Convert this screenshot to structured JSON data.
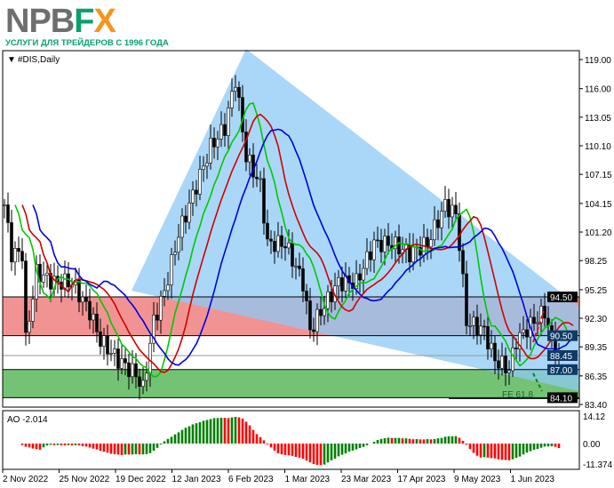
{
  "logo": {
    "text_gray": "NPB",
    "text_green": "F",
    "text_orange": "X",
    "tagline": "УСЛУГИ ДЛЯ ТРЕЙДЕРОВ С 1996 ГОДА"
  },
  "chart_data": [
    {
      "type": "candlestick",
      "title": "#DIS,Daily",
      "ylim": [
        83.4,
        119.0
      ],
      "y_ticks": [
        "119.00",
        "116.00",
        "113.05",
        "110.10",
        "107.15",
        "104.15",
        "101.20",
        "98.25",
        "95.25",
        "92.30",
        "89.35",
        "86.35",
        "83.40"
      ],
      "x_ticks": [
        "2 Nov 2022",
        "25 Nov 2022",
        "19 Dec 2022",
        "12 Jan 2023",
        "6 Feb 2023",
        "1 Mar 2023",
        "23 Mar 2023",
        "17 Apr 2023",
        "9 May 2023",
        "1 Jun 2023"
      ],
      "close_path": [
        [
          0,
          104
        ],
        [
          2,
          99
        ],
        [
          5,
          99
        ],
        [
          6,
          90
        ],
        [
          9,
          97
        ],
        [
          14,
          96
        ],
        [
          19,
          96
        ],
        [
          24,
          93
        ],
        [
          27,
          90
        ],
        [
          32,
          88
        ],
        [
          37,
          86.5
        ],
        [
          39,
          85
        ],
        [
          42,
          92
        ],
        [
          45,
          95
        ],
        [
          49,
          101
        ],
        [
          53,
          105
        ],
        [
          58,
          110
        ],
        [
          62,
          112
        ],
        [
          65,
          117
        ],
        [
          68,
          109
        ],
        [
          72,
          106
        ],
        [
          74,
          100
        ],
        [
          79,
          100
        ],
        [
          84,
          96
        ],
        [
          86,
          91
        ],
        [
          89,
          93
        ],
        [
          94,
          96
        ],
        [
          99,
          96
        ],
        [
          104,
          100
        ],
        [
          109,
          100
        ],
        [
          114,
          99
        ],
        [
          119,
          100
        ],
        [
          124,
          104
        ],
        [
          127,
          103
        ],
        [
          128,
          100
        ],
        [
          130,
          92
        ],
        [
          135,
          91
        ],
        [
          138,
          88
        ],
        [
          142,
          87
        ],
        [
          144,
          90
        ],
        [
          149,
          92
        ],
        [
          152,
          93
        ],
        [
          154,
          90
        ],
        [
          156,
          88.45
        ]
      ],
      "levels": [
        {
          "label": "94.50",
          "value": 94.5
        },
        {
          "label": "90.50",
          "value": 90.5
        },
        {
          "label": "88.45",
          "value": 88.45
        },
        {
          "label": "87.00",
          "value": 87.0
        },
        {
          "label": "84.10",
          "value": 84.1
        }
      ],
      "zones": [
        {
          "from": 90.5,
          "to": 94.5,
          "color": "#f08080"
        },
        {
          "from": 84.1,
          "to": 87.0,
          "color": "#5cb85c"
        }
      ],
      "annotation": "FE 61.8",
      "colors": {
        "ma_fast": "#00c800",
        "ma_mid": "#d00000",
        "ma_slow": "#0000e0",
        "wedge": "#8ec9f5"
      }
    },
    {
      "type": "bar",
      "title": "AO -2.014",
      "y_ticks": [
        "14.12",
        "0.00",
        "-11.374"
      ],
      "ylim": [
        -11.374,
        14.12
      ],
      "colors": {
        "up": "#008000",
        "down": "#ff0000"
      }
    }
  ]
}
